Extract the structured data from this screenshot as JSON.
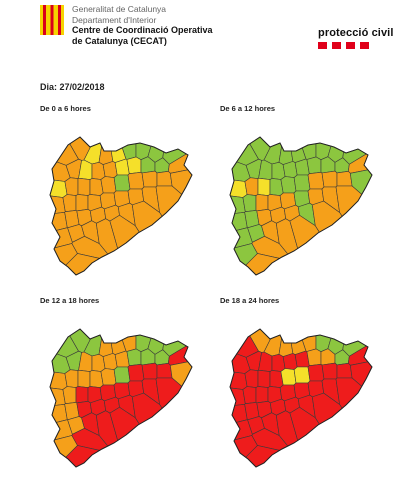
{
  "header": {
    "org_lines": [
      "Generalitat de Catalunya",
      "Departament d'Interior",
      "Centre de Coordinació Operativa",
      "de Catalunya (CECAT)"
    ],
    "brand": "protecció civil"
  },
  "date_label": "Dia: 27/02/2018",
  "colors": {
    "green": "#8cc63f",
    "yellow": "#f5e02a",
    "orange": "#f5a01a",
    "red": "#ee1c1c",
    "border": "#3a3a3a",
    "brand_red": "#e0001a"
  },
  "panels": [
    {
      "title": "De 0 a 6 hores",
      "regions": [
        "orange",
        "orange",
        "yellow",
        "orange",
        "yellow",
        "green",
        "green",
        "green",
        "green",
        "orange",
        "orange",
        "yellow",
        "orange",
        "orange",
        "yellow",
        "yellow",
        "green",
        "green",
        "orange",
        "yellow",
        "orange",
        "orange",
        "orange",
        "orange",
        "green",
        "orange",
        "orange",
        "orange",
        "orange",
        "orange",
        "orange",
        "orange",
        "orange",
        "orange",
        "orange",
        "orange",
        "orange"
      ]
    },
    {
      "title": "De 6 a 12 hores",
      "regions": [
        "green",
        "green",
        "green",
        "green",
        "green",
        "green",
        "green",
        "green",
        "green",
        "green",
        "green",
        "green",
        "green",
        "green",
        "green",
        "green",
        "green",
        "green",
        "orange",
        "yellow",
        "orange",
        "yellow",
        "green",
        "green",
        "green",
        "orange",
        "orange",
        "orange",
        "green",
        "green",
        "green",
        "orange",
        "orange",
        "orange",
        "green",
        "orange",
        "orange"
      ]
    },
    {
      "title": "De 12 a 18 hores",
      "regions": [
        "green",
        "green",
        "green",
        "orange",
        "orange",
        "orange",
        "green",
        "green",
        "green",
        "green",
        "green",
        "orange",
        "orange",
        "orange",
        "orange",
        "green",
        "green",
        "green",
        "red",
        "orange",
        "orange",
        "orange",
        "orange",
        "orange",
        "green",
        "red",
        "red",
        "red",
        "orange",
        "orange",
        "orange",
        "red",
        "red",
        "red",
        "red",
        "red",
        "red"
      ]
    },
    {
      "title": "De 18 a 24 hores",
      "regions": [
        "red",
        "orange",
        "orange",
        "orange",
        "orange",
        "orange",
        "green",
        "green",
        "green",
        "red",
        "red",
        "red",
        "red",
        "red",
        "red",
        "orange",
        "orange",
        "green",
        "red",
        "red",
        "red",
        "red",
        "red",
        "yellow",
        "yellow",
        "red",
        "red",
        "red",
        "red",
        "red",
        "red",
        "red",
        "red",
        "red",
        "red",
        "red",
        "red"
      ]
    }
  ]
}
